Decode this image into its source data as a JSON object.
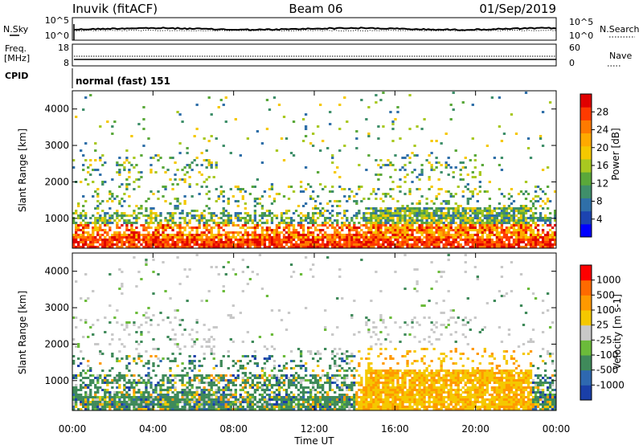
{
  "header": {
    "station": "Inuvik (fitACF)",
    "beam": "Beam 06",
    "date": "01/Sep/2019"
  },
  "nsky_panel": {
    "left_label": "N.Sky",
    "left_ticks": [
      "10^5",
      "10^0"
    ],
    "right_ticks": [
      "10^5",
      "10^0"
    ],
    "right_label": "N.Search"
  },
  "freq_panel": {
    "left_label_1": "Freq.",
    "left_label_2": "[MHz]",
    "left_ticks": [
      "18",
      "8"
    ],
    "right_ticks": [
      "60",
      "0"
    ],
    "right_label": "Nave"
  },
  "cpid_panel": {
    "label": "CPID",
    "value": "normal (fast) 151"
  },
  "chart_data": [
    {
      "type": "heatmap",
      "ylabel": "Slant Range [km]",
      "ylim": [
        180,
        4500
      ],
      "yticks": [
        "4000",
        "3000",
        "2000",
        "1000"
      ],
      "xlabel": "Time UT",
      "xticks": [
        "00:00",
        "04:00",
        "08:00",
        "12:00",
        "16:00",
        "20:00",
        "00:00"
      ],
      "colorbar": {
        "label": "Power [dB]",
        "ticks": [
          "28",
          "24",
          "20",
          "16",
          "12",
          "8",
          "4"
        ],
        "colors": [
          "#0000ff",
          "#1c44b0",
          "#2f6fa8",
          "#3f8f6a",
          "#5aa83a",
          "#a8c820",
          "#f5c800",
          "#ffaa00",
          "#ff7a00",
          "#ff3a00",
          "#e00000"
        ]
      }
    },
    {
      "type": "heatmap",
      "ylabel": "Slant Range [km]",
      "ylim": [
        180,
        4500
      ],
      "yticks": [
        "4000",
        "3000",
        "2000",
        "1000"
      ],
      "xlabel": "Time UT",
      "xticks": [
        "00:00",
        "04:00",
        "08:00",
        "12:00",
        "16:00",
        "20:00",
        "00:00"
      ],
      "colorbar": {
        "label": "Velocity [m s-1]",
        "ticks": [
          "1000",
          "500",
          "100",
          "25",
          "-25",
          "-100",
          "-500",
          "-1000"
        ],
        "colors": [
          "#1a3fa8",
          "#2e68b0",
          "#3f8a5a",
          "#6bbb3a",
          "#c8c8c8",
          "#f5c800",
          "#ff9900",
          "#ff6a00",
          "#ff0000"
        ]
      }
    }
  ]
}
